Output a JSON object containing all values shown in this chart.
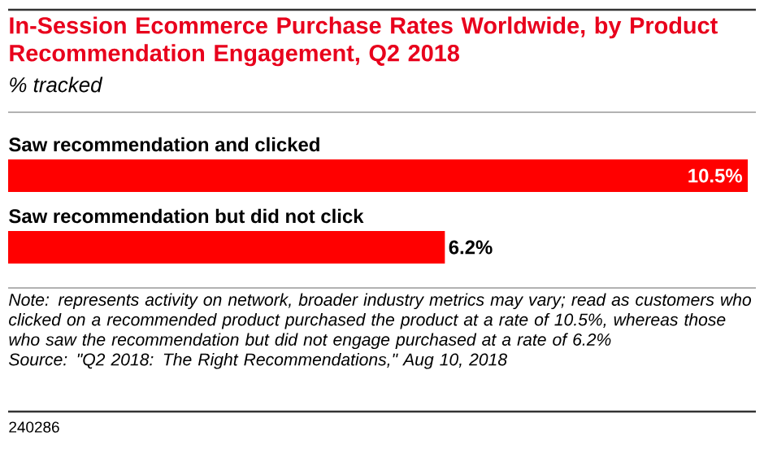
{
  "chart_data": {
    "type": "bar",
    "orientation": "horizontal",
    "title": "In-Session Ecommerce Purchase Rates Worldwide, by Product Recommendation Engagement, Q2 2018",
    "subtitle": "% tracked",
    "categories": [
      "Saw recommendation and clicked",
      "Saw recommendation but did not click"
    ],
    "values": [
      10.5,
      6.2
    ],
    "color": "#ff0000",
    "data_labels": true,
    "value_labels": [
      "10.5%",
      "6.2%"
    ],
    "annotations": [
      "Note: represents activity on network, broader industry metrics may vary; read as customers who clicked on a recommended product purchased the product at a rate of 10.5%, whereas those who saw the recommendation but did not engage purchased at a rate of 6.2%",
      "Source: \"Q2 2018: The Right Recommendations,\" Aug 10, 2018",
      "240286"
    ]
  }
}
